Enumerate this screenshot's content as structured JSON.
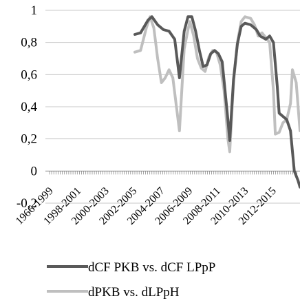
{
  "chart_data": {
    "type": "line",
    "title": "",
    "xlabel": "",
    "ylabel": "",
    "ylim": [
      -0.2,
      1.0
    ],
    "yticks": [
      "1",
      "0,8",
      "0,6",
      "0,4",
      "0,2",
      "0",
      "-0,2"
    ],
    "ytick_values": [
      1.0,
      0.8,
      0.6,
      0.4,
      0.2,
      0.0,
      -0.2
    ],
    "xtick_labels": [
      "1966-1999",
      "1998-2001",
      "2000-2003",
      "2002-2005",
      "2004-2007",
      "2006-2009",
      "2008-2011",
      "2010-2013",
      "2012-2015"
    ],
    "grid": true,
    "legend_position": "bottom",
    "series": [
      {
        "name": "dCF PKB vs. dCF LPpP",
        "color": "#595959",
        "points": [
          [
            0.0,
            0.85
          ],
          [
            0.03,
            0.86
          ],
          [
            0.07,
            0.94
          ],
          [
            0.09,
            0.96
          ],
          [
            0.12,
            0.91
          ],
          [
            0.15,
            0.88
          ],
          [
            0.18,
            0.87
          ],
          [
            0.21,
            0.82
          ],
          [
            0.235,
            0.58
          ],
          [
            0.26,
            0.87
          ],
          [
            0.28,
            0.96
          ],
          [
            0.3,
            0.96
          ],
          [
            0.32,
            0.87
          ],
          [
            0.34,
            0.75
          ],
          [
            0.36,
            0.65
          ],
          [
            0.38,
            0.66
          ],
          [
            0.4,
            0.73
          ],
          [
            0.42,
            0.75
          ],
          [
            0.44,
            0.73
          ],
          [
            0.46,
            0.68
          ],
          [
            0.47,
            0.56
          ],
          [
            0.49,
            0.32
          ],
          [
            0.5,
            0.19
          ],
          [
            0.52,
            0.57
          ],
          [
            0.54,
            0.79
          ],
          [
            0.56,
            0.9
          ],
          [
            0.58,
            0.92
          ],
          [
            0.61,
            0.91
          ],
          [
            0.64,
            0.88
          ],
          [
            0.66,
            0.84
          ],
          [
            0.69,
            0.82
          ],
          [
            0.71,
            0.84
          ],
          [
            0.73,
            0.8
          ],
          [
            0.75,
            0.53
          ],
          [
            0.76,
            0.36
          ],
          [
            0.78,
            0.34
          ],
          [
            0.8,
            0.32
          ],
          [
            0.82,
            0.25
          ],
          [
            0.84,
            0.0
          ],
          [
            0.86,
            -0.06
          ],
          [
            0.87,
            -0.1
          ]
        ]
      },
      {
        "name": "dPKB vs. dLPpH",
        "color": "#bfbfbf",
        "points": [
          [
            0.0,
            0.74
          ],
          [
            0.03,
            0.75
          ],
          [
            0.06,
            0.89
          ],
          [
            0.08,
            0.96
          ],
          [
            0.1,
            0.89
          ],
          [
            0.12,
            0.7
          ],
          [
            0.14,
            0.55
          ],
          [
            0.16,
            0.58
          ],
          [
            0.18,
            0.63
          ],
          [
            0.2,
            0.58
          ],
          [
            0.22,
            0.39
          ],
          [
            0.235,
            0.25
          ],
          [
            0.26,
            0.76
          ],
          [
            0.28,
            0.88
          ],
          [
            0.29,
            0.93
          ],
          [
            0.31,
            0.84
          ],
          [
            0.33,
            0.7
          ],
          [
            0.35,
            0.64
          ],
          [
            0.37,
            0.62
          ],
          [
            0.39,
            0.71
          ],
          [
            0.41,
            0.75
          ],
          [
            0.43,
            0.74
          ],
          [
            0.45,
            0.66
          ],
          [
            0.47,
            0.5
          ],
          [
            0.49,
            0.2
          ],
          [
            0.5,
            0.12
          ],
          [
            0.52,
            0.55
          ],
          [
            0.54,
            0.8
          ],
          [
            0.56,
            0.93
          ],
          [
            0.58,
            0.96
          ],
          [
            0.61,
            0.95
          ],
          [
            0.63,
            0.91
          ],
          [
            0.65,
            0.84
          ],
          [
            0.67,
            0.86
          ],
          [
            0.69,
            0.83
          ],
          [
            0.71,
            0.8
          ],
          [
            0.73,
            0.5
          ],
          [
            0.74,
            0.23
          ],
          [
            0.76,
            0.24
          ],
          [
            0.78,
            0.3
          ],
          [
            0.8,
            0.32
          ],
          [
            0.82,
            0.42
          ],
          [
            0.83,
            0.63
          ],
          [
            0.85,
            0.55
          ],
          [
            0.87,
            0.25
          ]
        ]
      }
    ]
  }
}
